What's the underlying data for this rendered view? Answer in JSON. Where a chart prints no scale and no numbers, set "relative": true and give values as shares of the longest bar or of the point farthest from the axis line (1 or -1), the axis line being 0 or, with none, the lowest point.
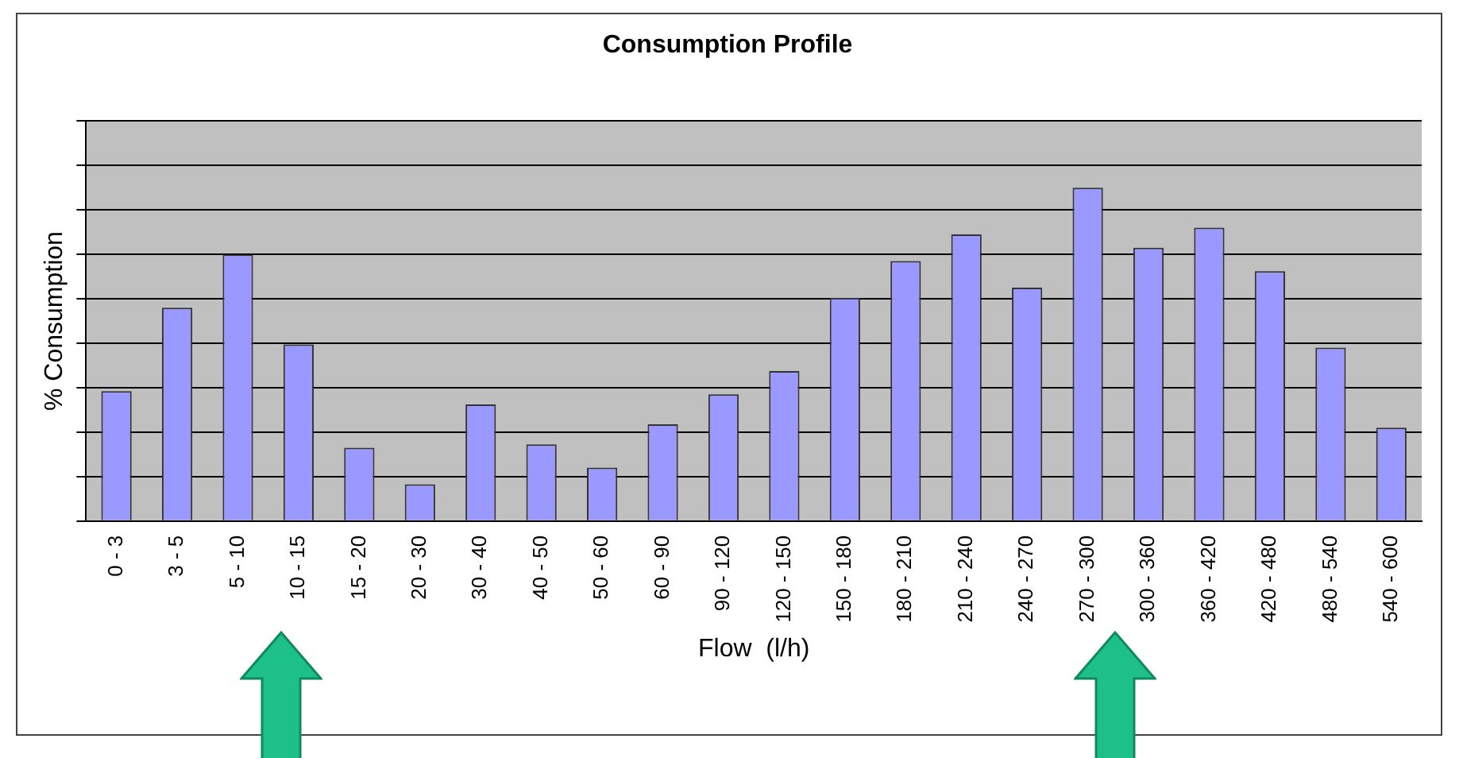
{
  "chart_data": {
    "type": "bar",
    "title": "Consumption Profile",
    "xlabel": "Flow  (l/h)",
    "ylabel": "% Consumption",
    "categories": [
      "0 - 3",
      "3 - 5",
      "5 - 10",
      "10 - 15",
      "15 - 20",
      "20 - 30",
      "30 - 40",
      "40 - 50",
      "50 - 60",
      "60 - 90",
      "90 - 120",
      "120 - 150",
      "150 - 180",
      "180 - 210",
      "210 - 240",
      "240 - 270",
      "270 - 300",
      "300 - 360",
      "360 - 420",
      "420 - 480",
      "480 - 540",
      "540 - 600"
    ],
    "values": [
      0.39,
      0.64,
      0.8,
      0.53,
      0.22,
      0.11,
      0.35,
      0.23,
      0.16,
      0.29,
      0.38,
      0.45,
      0.67,
      0.78,
      0.86,
      0.7,
      1,
      0.82,
      0.88,
      0.75,
      0.52,
      0.28
    ],
    "color": "#9999ff",
    "relative": true,
    "grid": "y"
  }
}
